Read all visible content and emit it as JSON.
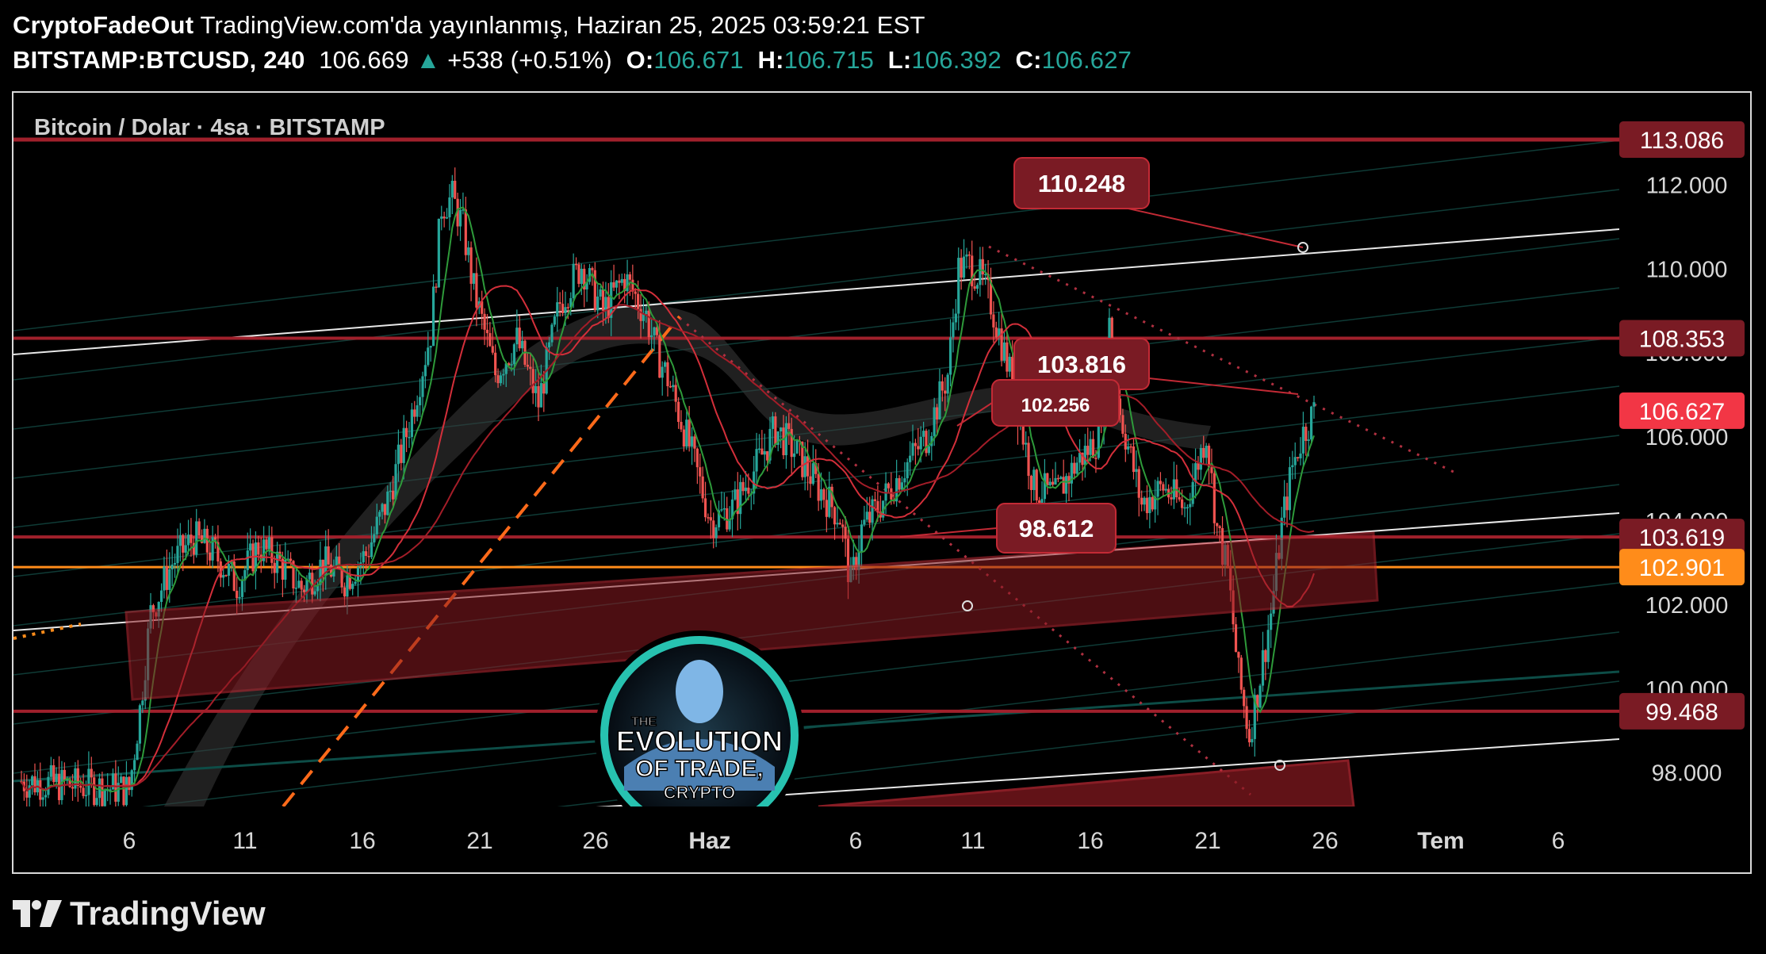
{
  "header": {
    "author": "CryptoFadeOut",
    "published": "TradingView.com'da yayınlanmış, Haziran 25, 2025 03:59:21 EST",
    "symbol": "BITSTAMP:BTCUSD, 240",
    "last": "106.669",
    "change_arrow": "▲",
    "change": "+538 (+0.51%)",
    "o_label": "O:",
    "o": "106.671",
    "h_label": "H:",
    "h": "106.715",
    "l_label": "L:",
    "l": "106.392",
    "c_label": "C:",
    "c": "106.627"
  },
  "chart_title": "Bitcoin / Dolar · 4sa · BITSTAMP",
  "badge_text": [
    "THE",
    "EVOLUTION",
    "OF TRADE,",
    "CRYPTO"
  ],
  "brand": "TradingView",
  "colors": {
    "up": "#26a69a",
    "down": "#ef5350",
    "level": "#8b1a22",
    "orange": "#ff8c1a",
    "badge": "#7a1b24",
    "current": "#f23645"
  },
  "chart_data": {
    "type": "candlestick",
    "timeframe": "4sa",
    "x_ticks": [
      "6",
      "11",
      "16",
      "21",
      "26",
      "Haz",
      "6",
      "11",
      "16",
      "21",
      "26",
      "Tem",
      "6"
    ],
    "y_ticks": [
      "112.000",
      "110.000",
      "108.000",
      "106.000",
      "104.000",
      "102.000",
      "100.000",
      "98.000"
    ],
    "ylim": [
      97.2,
      114.2
    ],
    "price_labels": [
      {
        "value": 113.086,
        "text": "113.086",
        "kind": "level"
      },
      {
        "value": 108.353,
        "text": "108.353",
        "kind": "level"
      },
      {
        "value": 106.627,
        "text": "106.627",
        "kind": "current"
      },
      {
        "value": 103.619,
        "text": "103.619",
        "kind": "level"
      },
      {
        "value": 102.901,
        "text": "102.901",
        "kind": "orange"
      },
      {
        "value": 99.468,
        "text": "99.468",
        "kind": "level"
      }
    ],
    "annotations": [
      {
        "text": "110.248",
        "value": 110.248
      },
      {
        "text": "103.816",
        "value": 103.816
      },
      {
        "text": "102.256",
        "value": 102.256
      },
      {
        "text": "98.612",
        "value": 98.612
      }
    ],
    "price_path": [
      [
        0,
        97.8
      ],
      [
        10,
        97.6
      ],
      [
        11,
        99.5
      ],
      [
        12,
        101.8
      ],
      [
        14,
        103.0
      ],
      [
        16,
        103.6
      ],
      [
        18,
        103.2
      ],
      [
        20,
        102.5
      ],
      [
        22,
        103.4
      ],
      [
        24,
        103.0
      ],
      [
        26,
        102.4
      ],
      [
        28,
        103.0
      ],
      [
        30,
        102.6
      ],
      [
        32,
        103.2
      ],
      [
        34,
        104.5
      ],
      [
        36,
        106.3
      ],
      [
        38,
        108.5
      ],
      [
        39,
        111.5
      ],
      [
        40,
        111.7
      ],
      [
        41,
        111.0
      ],
      [
        42,
        109.5
      ],
      [
        44,
        107.5
      ],
      [
        46,
        108.3
      ],
      [
        48,
        106.8
      ],
      [
        50,
        109.2
      ],
      [
        52,
        110.1
      ],
      [
        54,
        109.0
      ],
      [
        56,
        109.8
      ],
      [
        58,
        108.9
      ],
      [
        59,
        108.0
      ],
      [
        60,
        107.4
      ],
      [
        62,
        105.8
      ],
      [
        64,
        104.0
      ],
      [
        66,
        104.3
      ],
      [
        68,
        105.2
      ],
      [
        70,
        106.2
      ],
      [
        72,
        105.6
      ],
      [
        74,
        104.8
      ],
      [
        76,
        104.1
      ],
      [
        77,
        102.5
      ],
      [
        78,
        103.8
      ],
      [
        80,
        104.5
      ],
      [
        82,
        105.3
      ],
      [
        84,
        106.0
      ],
      [
        86,
        107.5
      ],
      [
        87,
        110.0
      ],
      [
        88,
        110.1
      ],
      [
        89,
        109.8
      ],
      [
        90,
        109.2
      ],
      [
        92,
        107.3
      ],
      [
        94,
        104.8
      ],
      [
        96,
        104.6
      ],
      [
        98,
        105.4
      ],
      [
        100,
        106.0
      ],
      [
        101,
        108.7
      ],
      [
        102,
        106.6
      ],
      [
        104,
        104.4
      ],
      [
        106,
        104.8
      ],
      [
        108,
        104.3
      ],
      [
        110,
        106.1
      ],
      [
        111,
        103.8
      ],
      [
        112,
        102.8
      ],
      [
        113,
        100.3
      ],
      [
        114,
        98.9
      ],
      [
        115,
        100.3
      ],
      [
        116,
        101.8
      ],
      [
        117,
        103.9
      ],
      [
        118,
        105.3
      ],
      [
        119,
        106.1
      ],
      [
        120,
        106.6
      ]
    ]
  }
}
